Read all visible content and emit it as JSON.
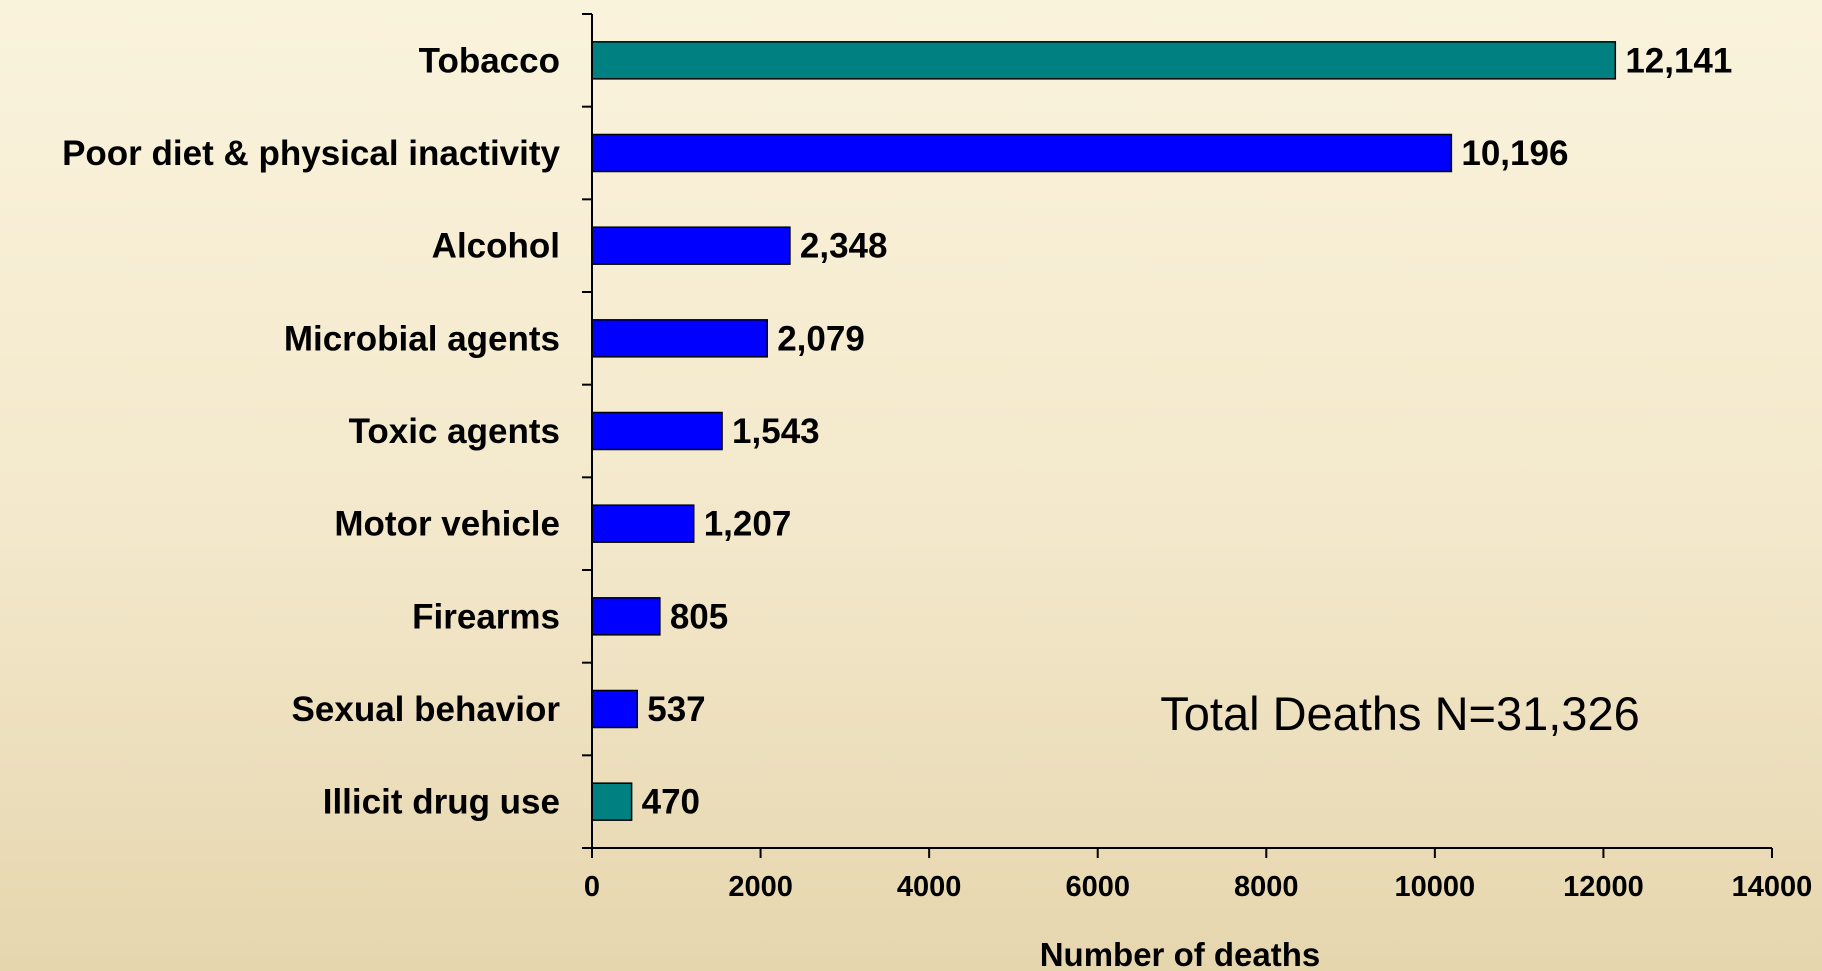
{
  "chart_data": {
    "type": "bar",
    "orientation": "horizontal",
    "categories": [
      "Tobacco",
      "Poor diet & physical inactivity",
      "Alcohol",
      "Microbial agents",
      "Toxic agents",
      "Motor vehicle",
      "Firearms",
      "Sexual behavior",
      "Illicit drug use"
    ],
    "values": [
      12141,
      10196,
      2348,
      2079,
      1543,
      1207,
      805,
      537,
      470
    ],
    "value_labels": [
      "12,141",
      "10,196",
      "2,348",
      "2,079",
      "1,543",
      "1,207",
      "805",
      "537",
      "470"
    ],
    "bar_colors": [
      "#008080",
      "#0000ff",
      "#0000ff",
      "#0000ff",
      "#0000ff",
      "#0000ff",
      "#0000ff",
      "#0000ff",
      "#008080"
    ],
    "xlabel": "Number of deaths",
    "ylabel": "",
    "xlim": [
      0,
      14000
    ],
    "xticks": [
      0,
      2000,
      4000,
      6000,
      8000,
      10000,
      12000,
      14000
    ],
    "grid": false,
    "legend": "none",
    "annotation": "Total Deaths N=31,326"
  }
}
